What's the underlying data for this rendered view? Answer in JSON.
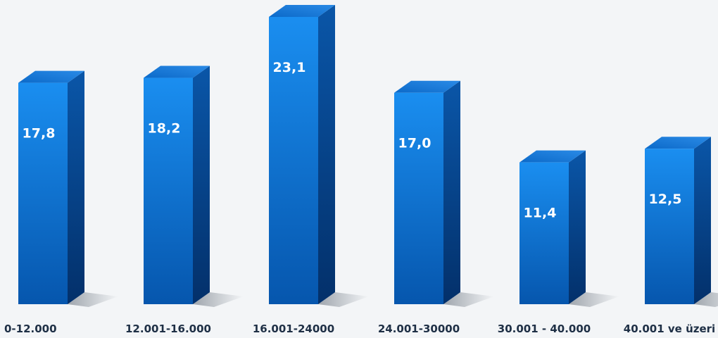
{
  "chart_data": {
    "type": "bar",
    "style": "3d",
    "categories": [
      "0-12.000",
      "12.001-16.000",
      "16.001-24000",
      "24.001-30000",
      "30.001 - 40.000",
      "40.001 ve üzeri"
    ],
    "values": [
      17.8,
      18.2,
      23.1,
      17.0,
      11.4,
      12.5
    ],
    "value_labels": [
      "17,8",
      "18,2",
      "23,1",
      "17,0",
      "11,4",
      "12,5"
    ],
    "title": "",
    "xlabel": "",
    "ylabel": "",
    "ylim": [
      0,
      23.1
    ],
    "grid": false,
    "legend": "none"
  },
  "colors": {
    "bar_front_top": "#1a8ef0",
    "bar_front_bottom": "#0656ad",
    "bar_side": "#043a78",
    "bar_top": "#1f7fe0",
    "background": "#f3f5f7",
    "category_text": "#1e2f45",
    "value_text": "#ffffff"
  }
}
